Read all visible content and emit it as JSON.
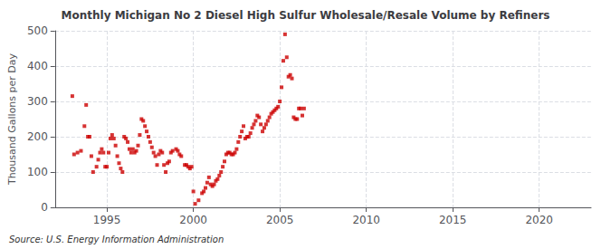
{
  "chart_data": {
    "type": "scatter",
    "title": "Monthly Michigan No 2 Diesel High Sulfur Wholesale/Resale Volume by Refiners",
    "ylabel": "Thousand Gallons per Day",
    "annotations": [
      "Source: U.S. Energy Information Administration"
    ],
    "color": "#cc0000",
    "marker": "square",
    "grid": true,
    "xlim": [
      1992,
      2023
    ],
    "ylim": [
      0,
      500
    ],
    "xticks": [
      1995,
      2000,
      2005,
      2010,
      2015,
      2020
    ],
    "yticks": [
      0,
      100,
      200,
      300,
      400,
      500
    ],
    "x": [
      1993.0,
      1993.1,
      1993.3,
      1993.5,
      1993.7,
      1993.8,
      1993.9,
      1994.0,
      1994.1,
      1994.2,
      1994.4,
      1994.5,
      1994.6,
      1994.7,
      1994.8,
      1994.9,
      1995.0,
      1995.1,
      1995.2,
      1995.3,
      1995.4,
      1995.5,
      1995.6,
      1995.7,
      1995.8,
      1995.9,
      1996.0,
      1996.1,
      1996.2,
      1996.3,
      1996.4,
      1996.5,
      1996.6,
      1996.7,
      1996.8,
      1996.9,
      1997.0,
      1997.1,
      1997.2,
      1997.3,
      1997.4,
      1997.5,
      1997.6,
      1997.7,
      1997.8,
      1997.9,
      1998.0,
      1998.1,
      1998.2,
      1998.3,
      1998.4,
      1998.5,
      1998.6,
      1998.7,
      1998.8,
      1999.0,
      1999.1,
      1999.2,
      1999.3,
      1999.5,
      1999.6,
      1999.7,
      1999.8,
      1999.9,
      2000.0,
      2000.1,
      2000.3,
      2000.5,
      2000.6,
      2000.7,
      2000.8,
      2000.9,
      2001.0,
      2001.1,
      2001.2,
      2001.3,
      2001.4,
      2001.5,
      2001.6,
      2001.7,
      2001.8,
      2001.9,
      2002.0,
      2002.1,
      2002.2,
      2002.3,
      2002.4,
      2002.5,
      2002.6,
      2002.7,
      2002.8,
      2002.9,
      2003.0,
      2003.1,
      2003.2,
      2003.3,
      2003.4,
      2003.5,
      2003.6,
      2003.7,
      2003.8,
      2003.9,
      2004.0,
      2004.1,
      2004.2,
      2004.3,
      2004.4,
      2004.5,
      2004.6,
      2004.7,
      2004.8,
      2004.9,
      2005.0,
      2005.1,
      2005.2,
      2005.3,
      2005.4,
      2005.5,
      2005.6,
      2005.7,
      2005.8,
      2005.9,
      2006.0,
      2006.1,
      2006.2,
      2006.3,
      2006.4
    ],
    "values": [
      315,
      150,
      155,
      160,
      230,
      290,
      200,
      200,
      145,
      100,
      115,
      135,
      155,
      165,
      155,
      115,
      115,
      155,
      195,
      205,
      195,
      175,
      145,
      125,
      110,
      100,
      200,
      195,
      185,
      165,
      155,
      165,
      155,
      160,
      175,
      205,
      250,
      245,
      230,
      215,
      200,
      185,
      170,
      155,
      145,
      120,
      150,
      160,
      155,
      120,
      100,
      125,
      130,
      155,
      160,
      165,
      160,
      150,
      145,
      120,
      120,
      115,
      110,
      115,
      45,
      10,
      20,
      40,
      45,
      55,
      70,
      85,
      65,
      60,
      65,
      75,
      80,
      90,
      100,
      115,
      130,
      150,
      155,
      155,
      150,
      150,
      155,
      165,
      185,
      200,
      215,
      230,
      195,
      200,
      200,
      210,
      225,
      235,
      245,
      260,
      255,
      235,
      215,
      225,
      235,
      245,
      255,
      265,
      270,
      275,
      280,
      285,
      300,
      340,
      415,
      490,
      425,
      370,
      375,
      365,
      255,
      250,
      250,
      280,
      280,
      260,
      280
    ]
  }
}
